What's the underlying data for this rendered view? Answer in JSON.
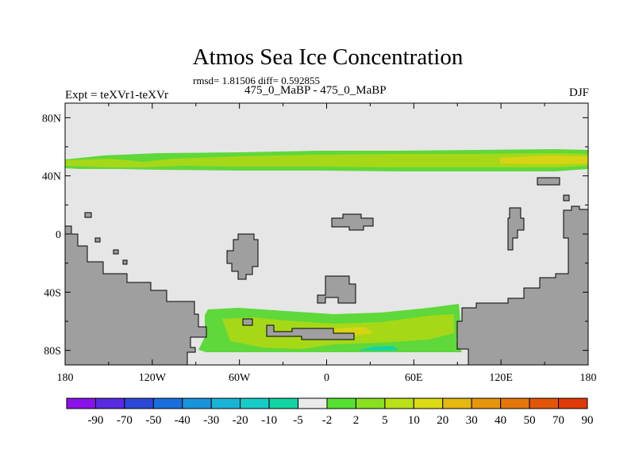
{
  "header": {
    "title": "Atmos Sea Ice Concentration",
    "stats": "rmsd= 1.81506 diff= 0.592855",
    "left_label": "Expt = teXVr1-teXVr",
    "center_label": "475_0_MaBP - 475_0_MaBP",
    "right_label": "DJF"
  },
  "chart_data": {
    "type": "heatmap",
    "title": "Atmos Sea Ice Concentration",
    "subtitle": "rmsd= 1.81506 diff= 0.592855",
    "xlim": [
      -180,
      180
    ],
    "ylim": [
      -90,
      90
    ],
    "x_ticks": [
      {
        "value": -180,
        "label": "180"
      },
      {
        "value": -120,
        "label": "120W"
      },
      {
        "value": -60,
        "label": "60W"
      },
      {
        "value": 0,
        "label": "0"
      },
      {
        "value": 60,
        "label": "60E"
      },
      {
        "value": 120,
        "label": "120E"
      },
      {
        "value": 180,
        "label": "180"
      }
    ],
    "y_ticks": [
      {
        "value": 80,
        "label": "80N"
      },
      {
        "value": 40,
        "label": "40N"
      },
      {
        "value": 0,
        "label": "0"
      },
      {
        "value": -40,
        "label": "40S"
      },
      {
        "value": -80,
        "label": "80S"
      }
    ],
    "background_color": "#e6e6e6",
    "land_color": "#9f9f9f",
    "colorbar": {
      "labels": [
        "-90",
        "-70",
        "-50",
        "-40",
        "-30",
        "-20",
        "-10",
        "-5",
        "-2",
        "2",
        "5",
        "10",
        "20",
        "30",
        "40",
        "50",
        "70",
        "90"
      ],
      "colors": [
        "#8a12e8",
        "#5a2ae0",
        "#2c48d8",
        "#1a6edc",
        "#1894dc",
        "#18b4d8",
        "#16ccc8",
        "#12d4a2",
        "#eaeaea",
        "#56e030",
        "#8ae020",
        "#bae018",
        "#dcdc14",
        "#e6b812",
        "#e6960e",
        "#e4760c",
        "#e2560a",
        "#e03a08"
      ]
    },
    "regions": [
      {
        "name": "northern-band",
        "level": "5 to 20",
        "lon": [
          -180,
          180
        ],
        "lat": [
          42,
          57
        ]
      },
      {
        "name": "southern-band",
        "level": "5 to 20",
        "lon": [
          -82,
          95
        ],
        "lat": [
          -83,
          -52
        ]
      },
      {
        "name": "southern-weak-patch",
        "level": "-5 to -2",
        "lon": [
          22,
          50
        ],
        "lat": [
          -83,
          -79
        ]
      }
    ]
  }
}
